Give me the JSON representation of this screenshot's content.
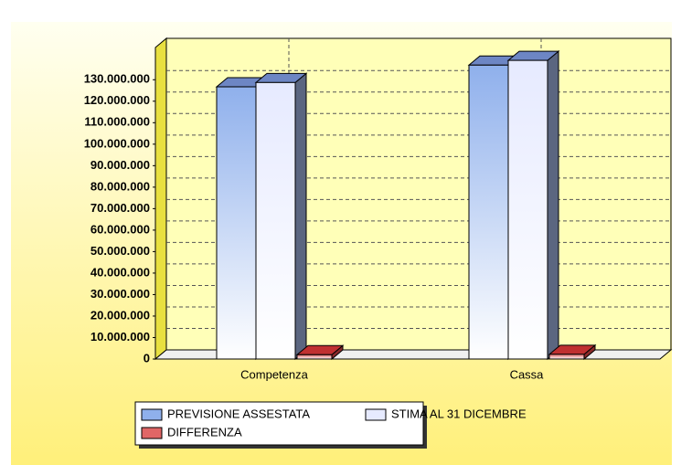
{
  "chart_data": {
    "type": "bar3d",
    "categories": [
      "Competenza",
      "Cassa"
    ],
    "series": [
      {
        "name": "PREVISIONE ASSESTATA",
        "color": "#8fb0ec",
        "values": [
          126700000,
          136800000
        ]
      },
      {
        "name": "STIMA AL 31 DICEMBRE",
        "color": "#e6eaff",
        "values": [
          128700000,
          139000000
        ]
      },
      {
        "name": "DIFFERENZA",
        "color": "#e06666",
        "values": [
          2000000,
          2200000
        ]
      }
    ],
    "ylim": [
      0,
      145000000
    ],
    "yticks": [
      0,
      {
        "value": 10000000,
        "label": "10.000.000"
      },
      {
        "value": 20000000,
        "label": "20.000.000"
      },
      {
        "value": 30000000,
        "label": "30.000.000"
      },
      {
        "value": 40000000,
        "label": "40.000.000"
      },
      {
        "value": 50000000,
        "label": "50.000.000"
      },
      {
        "value": 60000000,
        "label": "60.000.000"
      },
      {
        "value": 70000000,
        "label": "70.000.000"
      },
      {
        "value": 80000000,
        "label": "80.000.000"
      },
      {
        "value": 90000000,
        "label": "90.000.000"
      },
      {
        "value": 100000000,
        "label": "100.000.000"
      },
      {
        "value": 110000000,
        "label": "110.000.000"
      },
      {
        "value": 120000000,
        "label": "120.000.000"
      },
      {
        "value": 130000000,
        "label": "130.000.000"
      }
    ],
    "grid": true
  }
}
